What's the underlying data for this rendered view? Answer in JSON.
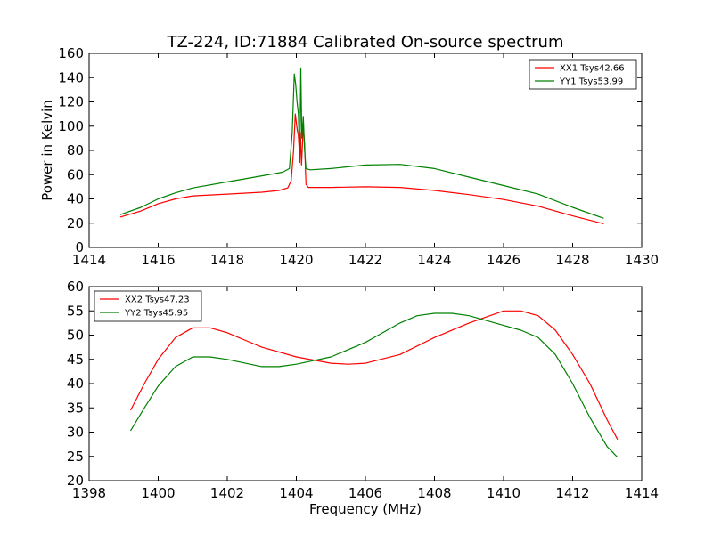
{
  "chart_data": [
    {
      "type": "line",
      "title": "TZ-224, ID:71884 Calibrated On-source spectrum",
      "xlabel": "",
      "ylabel": "Power in Kelvin",
      "xlim": [
        1414,
        1430
      ],
      "ylim": [
        0,
        160
      ],
      "xticks": [
        "1414",
        "1416",
        "1418",
        "1420",
        "1422",
        "1424",
        "1426",
        "1428",
        "1430"
      ],
      "yticks": [
        "0",
        "20",
        "40",
        "60",
        "80",
        "100",
        "120",
        "140",
        "160"
      ],
      "legend": "top-right",
      "series": [
        {
          "name": "XX1 Tsys42.66",
          "color": "#ff0000",
          "points": [
            [
              1414.9,
              25
            ],
            [
              1415.5,
              30
            ],
            [
              1416,
              36
            ],
            [
              1416.5,
              40
            ],
            [
              1417,
              42.5
            ],
            [
              1418,
              44
            ],
            [
              1419,
              45.5
            ],
            [
              1419.5,
              47
            ],
            [
              1419.75,
              49
            ],
            [
              1419.85,
              55
            ],
            [
              1419.92,
              80
            ],
            [
              1419.97,
              110
            ],
            [
              1420.02,
              98
            ],
            [
              1420.06,
              92
            ],
            [
              1420.1,
              72
            ],
            [
              1420.12,
              95
            ],
            [
              1420.15,
              68
            ],
            [
              1420.2,
              100
            ],
            [
              1420.24,
              85
            ],
            [
              1420.28,
              52
            ],
            [
              1420.35,
              49.5
            ],
            [
              1421,
              49.5
            ],
            [
              1422,
              50
            ],
            [
              1423,
              49.5
            ],
            [
              1424,
              47
            ],
            [
              1425,
              43.5
            ],
            [
              1426,
              39.5
            ],
            [
              1427,
              34
            ],
            [
              1428,
              26
            ],
            [
              1428.9,
              19.5
            ]
          ]
        },
        {
          "name": "YY1 Tsys53.99",
          "color": "#008000",
          "points": [
            [
              1414.9,
              27
            ],
            [
              1415.5,
              33
            ],
            [
              1416,
              40
            ],
            [
              1416.5,
              45
            ],
            [
              1417,
              49
            ],
            [
              1418,
              54
            ],
            [
              1419,
              59
            ],
            [
              1419.6,
              62
            ],
            [
              1419.8,
              65
            ],
            [
              1419.88,
              95
            ],
            [
              1419.94,
              143
            ],
            [
              1419.98,
              135
            ],
            [
              1420.02,
              120
            ],
            [
              1420.06,
              110
            ],
            [
              1420.1,
              70
            ],
            [
              1420.13,
              148
            ],
            [
              1420.16,
              90
            ],
            [
              1420.2,
              108
            ],
            [
              1420.24,
              80
            ],
            [
              1420.28,
              65
            ],
            [
              1420.4,
              64
            ],
            [
              1421,
              65
            ],
            [
              1422,
              68
            ],
            [
              1423,
              68.5
            ],
            [
              1424,
              65
            ],
            [
              1425,
              58
            ],
            [
              1426,
              51
            ],
            [
              1427,
              44
            ],
            [
              1428,
              33
            ],
            [
              1428.9,
              24
            ]
          ]
        }
      ]
    },
    {
      "type": "line",
      "title": "",
      "xlabel": "Frequency (MHz)",
      "ylabel": "",
      "xlim": [
        1398,
        1414
      ],
      "ylim": [
        20,
        60
      ],
      "xticks": [
        "1398",
        "1400",
        "1402",
        "1404",
        "1406",
        "1408",
        "1410",
        "1412",
        "1414"
      ],
      "yticks": [
        "20",
        "25",
        "30",
        "35",
        "40",
        "45",
        "50",
        "55",
        "60"
      ],
      "legend": "top-left",
      "series": [
        {
          "name": "XX2 Tsys47.23",
          "color": "#ff0000",
          "points": [
            [
              1399.2,
              34.5
            ],
            [
              1399.6,
              40
            ],
            [
              1400,
              45
            ],
            [
              1400.5,
              49.5
            ],
            [
              1401,
              51.5
            ],
            [
              1401.5,
              51.5
            ],
            [
              1402,
              50.5
            ],
            [
              1402.5,
              49
            ],
            [
              1403,
              47.5
            ],
            [
              1404,
              45.5
            ],
            [
              1405,
              44.2
            ],
            [
              1405.5,
              44
            ],
            [
              1406,
              44.2
            ],
            [
              1407,
              46
            ],
            [
              1408,
              49.5
            ],
            [
              1409,
              52.5
            ],
            [
              1410,
              55
            ],
            [
              1410.5,
              55
            ],
            [
              1411,
              54
            ],
            [
              1411.5,
              51
            ],
            [
              1412,
              46
            ],
            [
              1412.5,
              40
            ],
            [
              1413,
              32.5
            ],
            [
              1413.3,
              28.5
            ]
          ]
        },
        {
          "name": "YY2 Tsys45.95",
          "color": "#008000",
          "points": [
            [
              1399.2,
              30.3
            ],
            [
              1399.6,
              35
            ],
            [
              1400,
              39.5
            ],
            [
              1400.5,
              43.5
            ],
            [
              1401,
              45.5
            ],
            [
              1401.5,
              45.5
            ],
            [
              1402,
              45
            ],
            [
              1403,
              43.5
            ],
            [
              1403.5,
              43.5
            ],
            [
              1404,
              44
            ],
            [
              1405,
              45.5
            ],
            [
              1406,
              48.5
            ],
            [
              1407,
              52.5
            ],
            [
              1407.5,
              54
            ],
            [
              1408,
              54.5
            ],
            [
              1408.5,
              54.5
            ],
            [
              1409,
              54
            ],
            [
              1410,
              52
            ],
            [
              1410.5,
              51
            ],
            [
              1411,
              49.5
            ],
            [
              1411.5,
              46
            ],
            [
              1412,
              40
            ],
            [
              1412.5,
              33
            ],
            [
              1413,
              27
            ],
            [
              1413.3,
              24.8
            ]
          ]
        }
      ]
    }
  ]
}
